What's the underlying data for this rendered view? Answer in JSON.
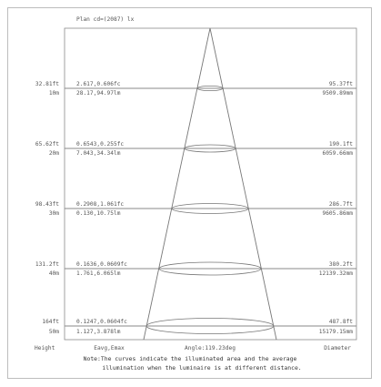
{
  "header_label": "Plan cd=(2087) lx",
  "rows": [
    {
      "height": "10m",
      "left_value": "32.81ft",
      "lux_line": "2.617,0.606fc",
      "lux_line2": "28.17,94.97lm",
      "diam_ft": "95.37ft",
      "diam_m": "9509.89mm"
    },
    {
      "height": "20m",
      "left_value": "65.62ft",
      "lux_line": "0.6543,0.255fc",
      "lux_line2": "7.043,34.34lm",
      "diam_ft": "190.1ft",
      "diam_m": "6059.66mm"
    },
    {
      "height": "30m",
      "left_value": "98.43ft",
      "lux_line": "0.2908,1.061fc",
      "lux_line2": "0.130,10.75lm",
      "diam_ft": "286.7ft",
      "diam_m": "9605.86mm"
    },
    {
      "height": "40m",
      "left_value": "131.2ft",
      "lux_line": "0.1636,0.0609fc",
      "lux_line2": "1.761,6.065lm",
      "diam_ft": "380.2ft",
      "diam_m": "12139.32mm"
    },
    {
      "height": "50m",
      "left_value": "164ft",
      "lux_line": "0.1247,0.0604fc",
      "lux_line2": "1.127,3.878lm",
      "diam_ft": "487.8ft",
      "diam_m": "15179.15mm"
    }
  ],
  "footer": {
    "height_label": "Height",
    "lux_label": "Eavg,Emax",
    "angle_label": "Angle:119.23deg",
    "diameter_label": "Diameter"
  },
  "note_line1": "Note:The curves indicate the illuminated area and the average",
  "note_line2": "illumination when the luminaire is at different distance."
}
